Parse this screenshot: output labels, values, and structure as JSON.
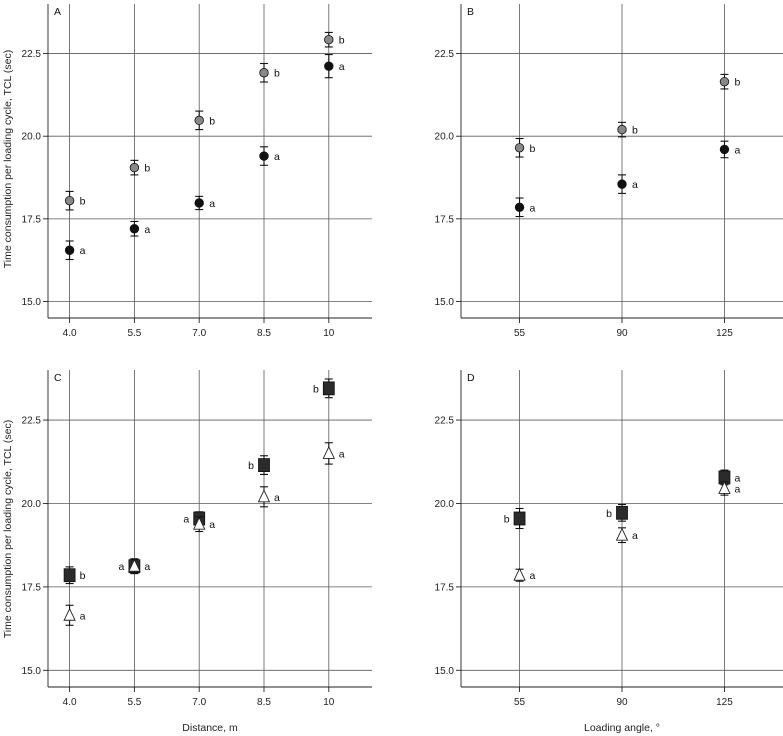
{
  "figure": {
    "ylabel": "Time consumption per loading cycle, TCL (sec)",
    "xlabel_left": "Distance, m",
    "xlabel_right": "Loading angle, °"
  },
  "chart_data": [
    {
      "panel": "A",
      "type": "scatter",
      "categories": [
        "4.0",
        "5.5",
        "7.0",
        "8.5",
        "10"
      ],
      "x": [
        4.0,
        5.5,
        7.0,
        8.5,
        10.0
      ],
      "xlim": [
        3.5,
        11.0
      ],
      "ylim": [
        14.5,
        24.0
      ],
      "yticks": [
        "15.0",
        "17.5",
        "20.0",
        "22.5"
      ],
      "grid": true,
      "series": [
        {
          "marker": "circle",
          "color": "#111111",
          "values": [
            16.55,
            17.2,
            17.98,
            19.4,
            22.12
          ],
          "err": [
            0.28,
            0.22,
            0.2,
            0.28,
            0.35
          ],
          "labels": [
            "a",
            "a",
            "a",
            "a",
            "a"
          ]
        },
        {
          "marker": "circle",
          "color": "#888888",
          "values": [
            18.05,
            19.05,
            20.48,
            21.92,
            22.92
          ],
          "err": [
            0.28,
            0.22,
            0.28,
            0.28,
            0.22
          ],
          "labels": [
            "b",
            "b",
            "b",
            "b",
            "b"
          ]
        }
      ]
    },
    {
      "panel": "B",
      "type": "scatter",
      "categories": [
        "55",
        "90",
        "125"
      ],
      "x": [
        55,
        90,
        125
      ],
      "xlim": [
        35,
        145
      ],
      "ylim": [
        14.5,
        24.0
      ],
      "yticks": [
        "15.0",
        "17.5",
        "20.0",
        "22.5"
      ],
      "grid": true,
      "series": [
        {
          "marker": "circle",
          "color": "#111111",
          "values": [
            17.85,
            18.55,
            19.6
          ],
          "err": [
            0.28,
            0.28,
            0.25
          ],
          "labels": [
            "a",
            "a",
            "a"
          ]
        },
        {
          "marker": "circle",
          "color": "#888888",
          "values": [
            19.65,
            20.2,
            21.65
          ],
          "err": [
            0.28,
            0.22,
            0.22
          ],
          "labels": [
            "b",
            "b",
            "b"
          ]
        }
      ]
    },
    {
      "panel": "C",
      "type": "scatter",
      "categories": [
        "4.0",
        "5.5",
        "7.0",
        "8.5",
        "10"
      ],
      "x": [
        4.0,
        5.5,
        7.0,
        8.5,
        10.0
      ],
      "xlim": [
        3.5,
        11.0
      ],
      "ylim": [
        14.5,
        24.0
      ],
      "yticks": [
        "15.0",
        "17.5",
        "20.0",
        "22.5"
      ],
      "grid": true,
      "series": [
        {
          "marker": "square",
          "color": "#2b2b2b",
          "values": [
            17.85,
            18.12,
            19.55,
            21.15,
            23.45
          ],
          "err": [
            0.25,
            0.22,
            0.2,
            0.28,
            0.28
          ],
          "labels": [
            "b",
            "a",
            "a",
            "b",
            "b"
          ],
          "label_side": [
            "right",
            "left",
            "left",
            "left",
            "left"
          ]
        },
        {
          "marker": "triangle",
          "color": "#ffffff",
          "values": [
            16.65,
            18.12,
            19.38,
            20.2,
            21.5
          ],
          "err": [
            0.3,
            0.22,
            0.22,
            0.3,
            0.32
          ],
          "labels": [
            "a",
            "a",
            "a",
            "a",
            "a"
          ],
          "label_side": [
            "right",
            "right",
            "right",
            "right",
            "right"
          ]
        }
      ]
    },
    {
      "panel": "D",
      "type": "scatter",
      "categories": [
        "55",
        "90",
        "125"
      ],
      "x": [
        55,
        90,
        125
      ],
      "xlim": [
        35,
        145
      ],
      "ylim": [
        14.5,
        24.0
      ],
      "yticks": [
        "15.0",
        "17.5",
        "20.0",
        "22.5"
      ],
      "grid": true,
      "series": [
        {
          "marker": "square",
          "color": "#2b2b2b",
          "values": [
            19.55,
            19.72,
            20.78
          ],
          "err": [
            0.3,
            0.25,
            0.22
          ],
          "labels": [
            "b",
            "b",
            "a"
          ],
          "label_side": [
            "left",
            "left",
            "none"
          ]
        },
        {
          "marker": "triangle",
          "color": "#ffffff",
          "values": [
            17.85,
            19.05,
            20.45
          ],
          "err": [
            0.18,
            0.22,
            0.2
          ],
          "labels": [
            "a",
            "a",
            "a"
          ],
          "label_side": [
            "right",
            "right",
            "right"
          ]
        }
      ]
    }
  ]
}
